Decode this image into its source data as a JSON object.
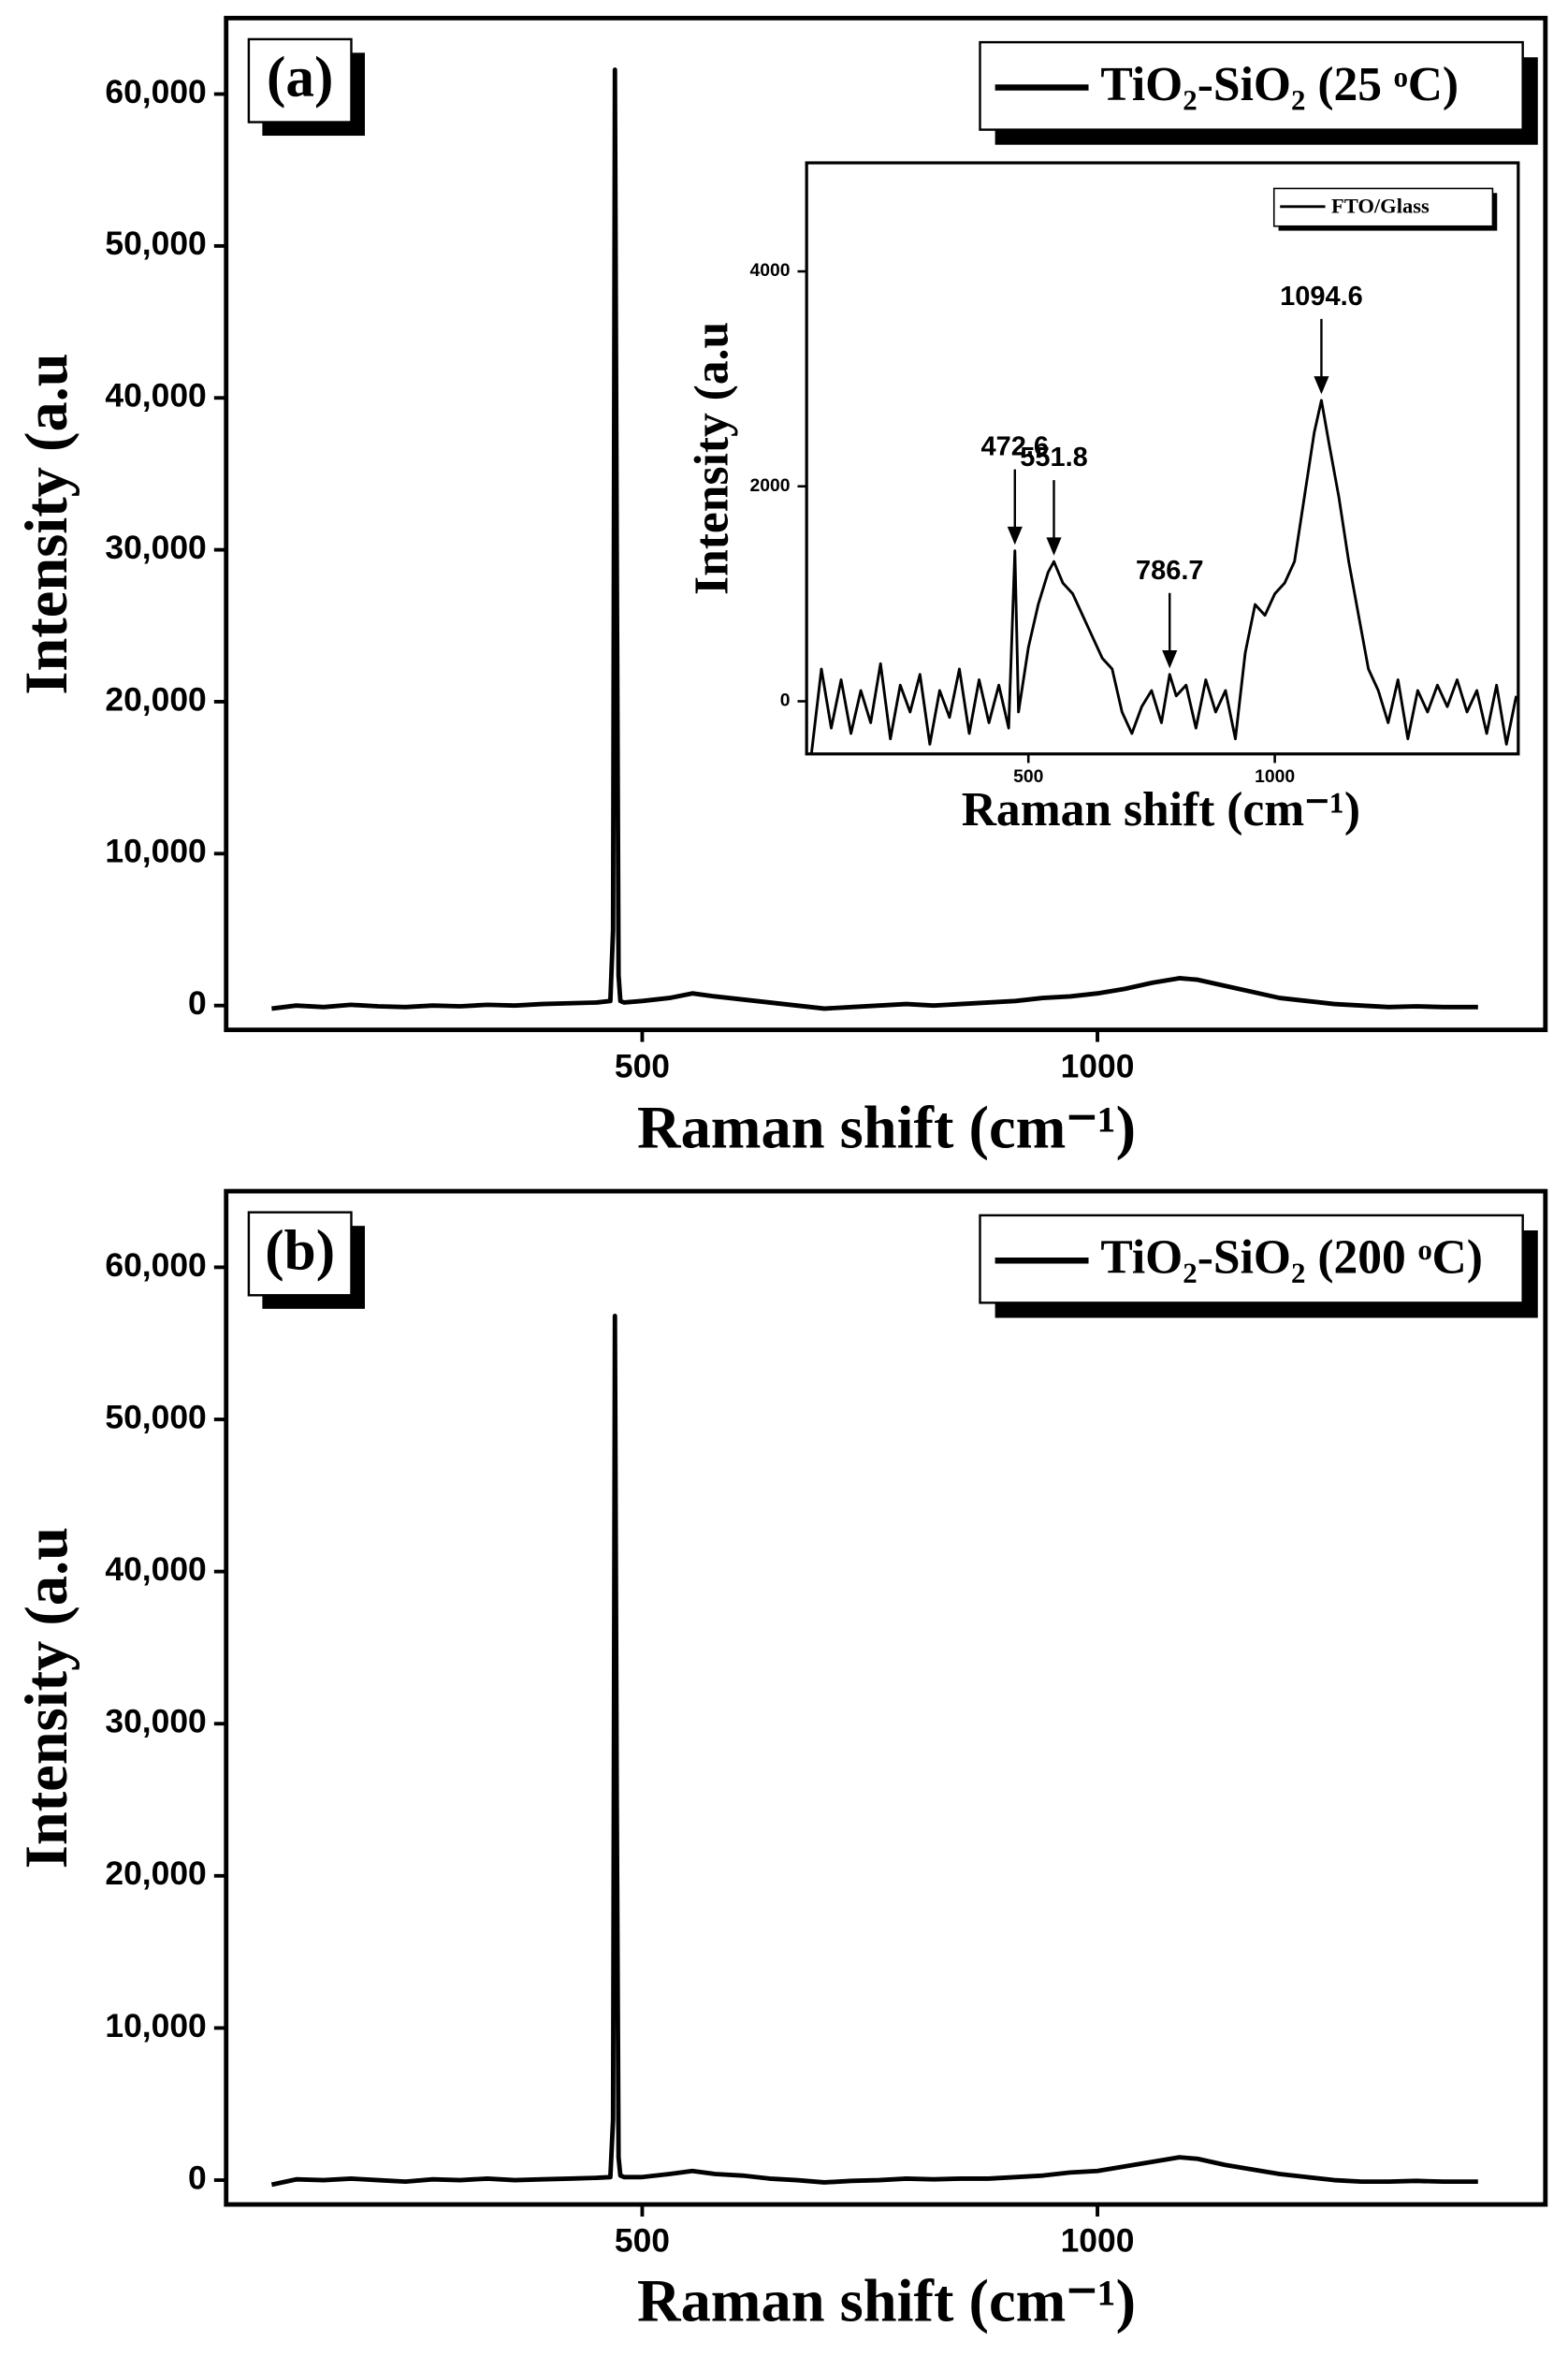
{
  "chart_data": [
    {
      "type": "line",
      "panel_label": "(a)",
      "x_label": "Raman shift (cm⁻¹)",
      "y_label": "Intensity (a.u",
      "x": [
        93,
        120,
        150,
        180,
        210,
        240,
        270,
        300,
        330,
        360,
        390,
        420,
        450,
        465,
        468,
        470,
        472,
        474,
        476,
        480,
        500,
        530,
        555,
        580,
        610,
        640,
        670,
        700,
        730,
        760,
        790,
        820,
        850,
        880,
        910,
        940,
        970,
        1000,
        1030,
        1060,
        1090,
        1110,
        1140,
        1170,
        1200,
        1230,
        1260,
        1290,
        1320,
        1350,
        1380,
        1418
      ],
      "series": [
        {
          "name": "TiO₂-SiO₂ (25 ᵒC)",
          "color": "#000000",
          "values": [
            -200,
            0,
            -100,
            50,
            -50,
            -100,
            0,
            -50,
            50,
            0,
            100,
            150,
            200,
            300,
            5000,
            61600,
            30000,
            2000,
            300,
            200,
            300,
            500,
            800,
            600,
            400,
            200,
            0,
            -200,
            -100,
            0,
            100,
            0,
            100,
            200,
            300,
            500,
            600,
            800,
            1100,
            1500,
            1800,
            1700,
            1300,
            900,
            500,
            300,
            100,
            0,
            -100,
            -50,
            -100,
            -100
          ]
        }
      ],
      "xlim": [
        43,
        1492
      ],
      "ylim": [
        -1600,
        65000
      ],
      "xticks": [
        500,
        1000
      ],
      "yticks": [
        0,
        {
          "value": 10000,
          "label": "10,000"
        },
        {
          "value": 20000,
          "label": "20,000"
        },
        {
          "value": 30000,
          "label": "30,000"
        },
        {
          "value": 40000,
          "label": "40,000"
        },
        {
          "value": 50000,
          "label": "50,000"
        },
        {
          "value": 60000,
          "label": "60,000"
        }
      ],
      "legend": "upper right"
    },
    {
      "type": "line",
      "x_label": "Raman shift (cm⁻¹)",
      "y_label": "Intensity (a.u",
      "x": [
        60,
        80,
        100,
        120,
        140,
        160,
        180,
        200,
        220,
        240,
        260,
        280,
        300,
        320,
        340,
        360,
        380,
        400,
        420,
        440,
        460,
        472.6,
        480,
        500,
        520,
        540,
        551.8,
        570,
        590,
        610,
        630,
        650,
        670,
        690,
        710,
        730,
        750,
        770,
        786.7,
        800,
        820,
        840,
        860,
        880,
        900,
        920,
        940,
        960,
        980,
        1000,
        1020,
        1040,
        1060,
        1080,
        1094.6,
        1110,
        1130,
        1150,
        1170,
        1190,
        1210,
        1230,
        1250,
        1270,
        1290,
        1310,
        1330,
        1350,
        1370,
        1390,
        1410,
        1430,
        1450,
        1470,
        1490
      ],
      "series": [
        {
          "name": "FTO/Glass",
          "color": "#000000",
          "values": [
            -480,
            300,
            -250,
            200,
            -300,
            100,
            -200,
            350,
            -350,
            150,
            -100,
            250,
            -400,
            100,
            -150,
            300,
            -300,
            200,
            -200,
            150,
            -250,
            1400,
            -100,
            500,
            900,
            1200,
            1300,
            1100,
            1000,
            800,
            600,
            400,
            300,
            -100,
            -300,
            -50,
            100,
            -200,
            250,
            50,
            150,
            -250,
            200,
            -100,
            100,
            -350,
            450,
            900,
            800,
            1000,
            1100,
            1300,
            1900,
            2500,
            2800,
            2400,
            1900,
            1300,
            800,
            300,
            100,
            -200,
            200,
            -350,
            100,
            -100,
            150,
            -50,
            200,
            -100,
            100,
            -300,
            150,
            -400,
            50
          ]
        }
      ],
      "xlim": [
        50,
        1494
      ],
      "ylim": [
        -490,
        5010
      ],
      "xticks": [
        500,
        1000
      ],
      "yticks": [
        0,
        2000,
        4000
      ],
      "annotations": [
        {
          "value": 472.6,
          "label": "472.6"
        },
        {
          "value": 551.8,
          "label": "551.8"
        },
        {
          "value": 786.7,
          "label": "786.7"
        },
        {
          "value": 1094.6,
          "label": "1094.6"
        }
      ],
      "legend": "upper right"
    },
    {
      "type": "line",
      "panel_label": "(b)",
      "x_label": "Raman shift (cm⁻¹)",
      "y_label": "Intensity (a.u",
      "x": [
        93,
        120,
        150,
        180,
        210,
        240,
        270,
        300,
        330,
        360,
        390,
        420,
        450,
        465,
        468,
        470,
        472,
        474,
        476,
        480,
        500,
        530,
        555,
        580,
        610,
        640,
        670,
        700,
        730,
        760,
        790,
        820,
        850,
        880,
        910,
        940,
        970,
        1000,
        1030,
        1060,
        1090,
        1110,
        1140,
        1170,
        1200,
        1230,
        1260,
        1290,
        1320,
        1350,
        1380,
        1418
      ],
      "series": [
        {
          "name": "TiO₂-SiO₂ (200 ᵒC)",
          "color": "#000000",
          "values": [
            -300,
            50,
            0,
            100,
            0,
            -100,
            50,
            0,
            100,
            0,
            50,
            100,
            150,
            200,
            4000,
            56800,
            25000,
            1500,
            300,
            200,
            200,
            400,
            600,
            400,
            300,
            100,
            0,
            -150,
            -50,
            0,
            100,
            50,
            100,
            100,
            200,
            300,
            500,
            600,
            900,
            1200,
            1500,
            1400,
            1000,
            700,
            400,
            200,
            0,
            -100,
            -100,
            -50,
            -100,
            -100
          ]
        }
      ],
      "xlim": [
        43,
        1492
      ],
      "ylim": [
        -1600,
        65000
      ],
      "xticks": [
        500,
        1000
      ],
      "yticks": [
        0,
        {
          "value": 10000,
          "label": "10,000"
        },
        {
          "value": 20000,
          "label": "20,000"
        },
        {
          "value": 30000,
          "label": "30,000"
        },
        {
          "value": 40000,
          "label": "40,000"
        },
        {
          "value": 50000,
          "label": "50,000"
        },
        {
          "value": 60000,
          "label": "60,000"
        }
      ],
      "legend": "upper right"
    }
  ]
}
